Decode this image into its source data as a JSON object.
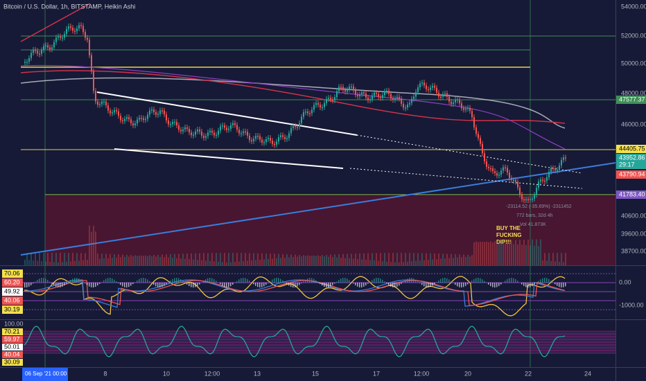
{
  "header": {
    "title": "Bitcoin / U.S. Dollar, 1h, BITSTAMP, Heikin Ashi"
  },
  "price_axis": {
    "labels": [
      "54000.00",
      "52000.00",
      "50000.00",
      "48000.00",
      "46000.00",
      "40600.00",
      "39600.00",
      "38700.00"
    ],
    "badges": [
      "47577.37",
      "44405.75",
      "43952.86",
      "29:17",
      "43790.94",
      "41783.40"
    ]
  },
  "annotation": {
    "lines": [
      "BUY THE",
      "FUCKING",
      "DIP!!!"
    ]
  },
  "measure": {
    "lines": [
      "-23114.52 (-35.69%) -2311452",
      "772 bars, 32d 4h",
      "Vol 41.873K"
    ]
  },
  "oscillator": {
    "left_labels": [
      "70.06",
      "60.20",
      "49.92",
      "40.06",
      "30.19"
    ],
    "right_labels": [
      "0.00",
      "-1000.00"
    ]
  },
  "rsi": {
    "left_labels": [
      "100.00",
      "70.21",
      "59.97",
      "50.01",
      "40.04",
      "30.09"
    ]
  },
  "time_axis": {
    "labels": [
      "06 Sep '21  00:00",
      "8",
      "10",
      "12:00",
      "13",
      "15",
      "17",
      "12:00",
      "20",
      "22",
      "24"
    ]
  }
}
